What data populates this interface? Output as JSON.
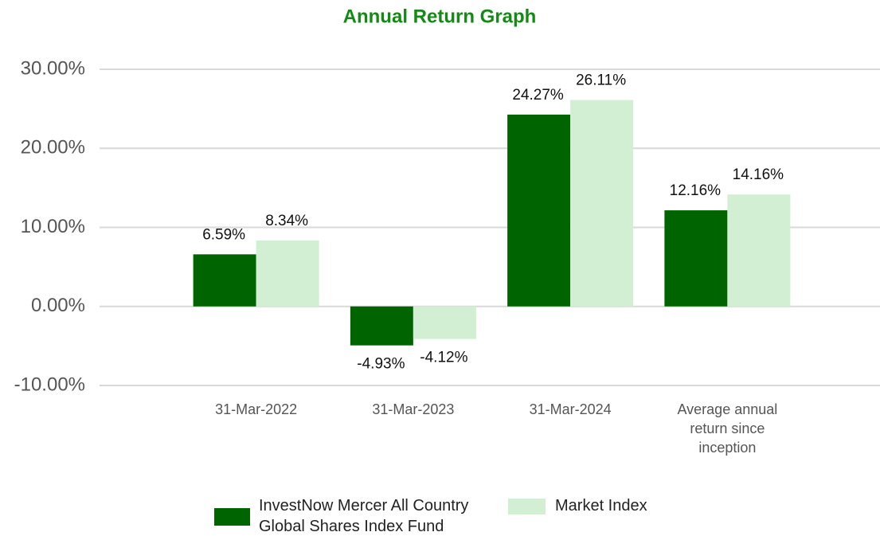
{
  "chart_data": {
    "type": "bar",
    "title": "Annual Return Graph",
    "categories": [
      "31-Mar-2022",
      "31-Mar-2023",
      "31-Mar-2024",
      "Average annual return since inception"
    ],
    "series": [
      {
        "name": "InvestNow Mercer All Country Global Shares Index Fund",
        "color": "#006400",
        "values": [
          6.59,
          -4.93,
          24.27,
          12.16
        ],
        "value_labels": [
          "6.59%",
          "-4.93%",
          "24.27%",
          "12.16%"
        ]
      },
      {
        "name": "Market Index",
        "color": "#d3efd3",
        "values": [
          8.34,
          -4.12,
          26.11,
          14.16
        ],
        "value_labels": [
          "8.34%",
          "-4.12%",
          "26.11%",
          "14.16%"
        ]
      }
    ],
    "ylim": [
      -10,
      30
    ],
    "yticks": [
      {
        "value": -10,
        "label": "-10.00%"
      },
      {
        "value": 0,
        "label": "0.00%"
      },
      {
        "value": 10,
        "label": "10.00%"
      },
      {
        "value": 20,
        "label": "20.00%"
      },
      {
        "value": 30,
        "label": "30.00%"
      }
    ],
    "grid": true,
    "legend": "bottom"
  }
}
